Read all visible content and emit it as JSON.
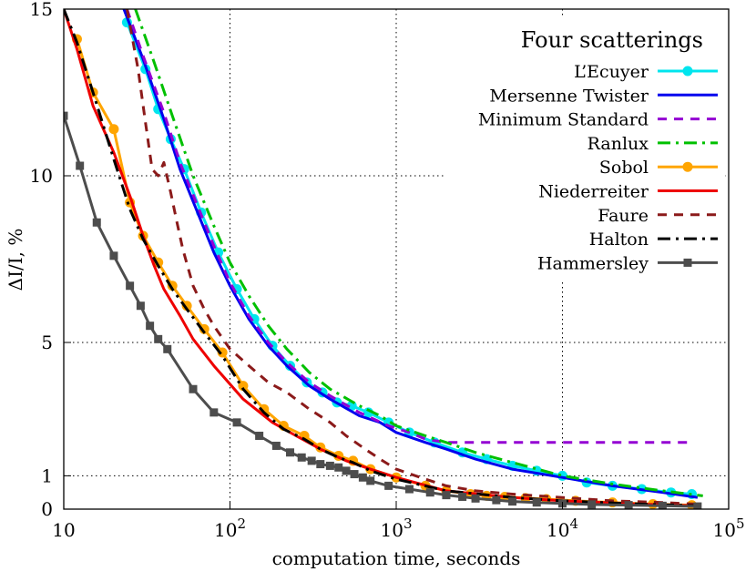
{
  "chart_data": {
    "type": "line",
    "title": "",
    "xlabel": "computation time, seconds",
    "ylabel": "ΔI/I, %",
    "xscale": "log",
    "xlim": [
      10,
      100000
    ],
    "ylim": [
      0,
      15
    ],
    "x_ticks": [
      {
        "value": 10,
        "base": "10",
        "exp": ""
      },
      {
        "value": 100,
        "base": "10",
        "exp": "2"
      },
      {
        "value": 1000,
        "base": "10",
        "exp": "3"
      },
      {
        "value": 10000,
        "base": "10",
        "exp": "4"
      },
      {
        "value": 100000,
        "base": "10",
        "exp": "5"
      }
    ],
    "y_ticks": [
      0,
      1,
      5,
      10,
      15
    ],
    "grid": true,
    "legend": {
      "title": "Four scatterings",
      "position": "top-right"
    },
    "series": [
      {
        "name": "L’Ecuyer",
        "color": "#00e5ee",
        "style": "solid",
        "marker": "circle",
        "x": [
          24,
          31,
          37,
          44,
          53,
          67,
          85,
          110,
          140,
          180,
          230,
          290,
          360,
          440,
          540,
          680,
          900,
          1200,
          1700,
          2500,
          3500,
          5000,
          7000,
          10000,
          14000,
          20000,
          30000,
          45000,
          60000
        ],
        "y": [
          14.6,
          13.2,
          12.0,
          11.1,
          10.2,
          8.9,
          7.7,
          6.6,
          5.7,
          4.9,
          4.3,
          3.8,
          3.5,
          3.2,
          3.1,
          2.9,
          2.6,
          2.3,
          2.0,
          1.7,
          1.5,
          1.3,
          1.15,
          1.0,
          0.8,
          0.7,
          0.6,
          0.5,
          0.45
        ]
      },
      {
        "name": "Mersenne Twister",
        "color": "#0000ee",
        "style": "solid",
        "marker": "none",
        "x": [
          23,
          30,
          40,
          50,
          65,
          80,
          100,
          130,
          170,
          220,
          300,
          400,
          600,
          800,
          1000,
          1500,
          2000,
          3000,
          5000,
          10000,
          20000,
          40000,
          65000
        ],
        "y": [
          15,
          13.5,
          11.7,
          10.2,
          8.8,
          7.7,
          6.7,
          5.7,
          4.9,
          4.3,
          3.7,
          3.3,
          2.8,
          2.6,
          2.3,
          2.0,
          1.8,
          1.5,
          1.2,
          0.95,
          0.7,
          0.5,
          0.35
        ]
      },
      {
        "name": "Minimum Standard",
        "color": "#9400d3",
        "style": "dash",
        "marker": "none",
        "x": [
          24,
          30,
          40,
          50,
          65,
          80,
          100,
          130,
          170,
          220,
          300,
          400,
          600,
          900,
          1200,
          1500,
          2000,
          5000,
          10000,
          30000,
          60000
        ],
        "y": [
          15,
          13.6,
          11.9,
          10.4,
          9.0,
          7.9,
          6.8,
          5.8,
          5.0,
          4.4,
          3.8,
          3.4,
          2.9,
          2.5,
          2.3,
          2.1,
          2.0,
          2.0,
          2.0,
          2.0,
          2.0
        ]
      },
      {
        "name": "Ranlux",
        "color": "#00c000",
        "style": "dashdot",
        "marker": "none",
        "x": [
          27,
          35,
          45,
          60,
          80,
          100,
          130,
          170,
          220,
          300,
          400,
          600,
          800,
          1000,
          1500,
          2000,
          3000,
          5000,
          10000,
          20000,
          40000,
          70000
        ],
        "y": [
          15,
          13.4,
          11.8,
          10.0,
          8.5,
          7.4,
          6.4,
          5.5,
          4.8,
          4.1,
          3.6,
          3.1,
          2.8,
          2.5,
          2.2,
          2.0,
          1.7,
          1.4,
          1.0,
          0.75,
          0.55,
          0.4
        ]
      },
      {
        "name": "Sobol",
        "color": "#ffa500",
        "style": "solid",
        "marker": "circle",
        "x": [
          12,
          15,
          20,
          25,
          30,
          37,
          45,
          55,
          70,
          90,
          120,
          160,
          210,
          280,
          350,
          450,
          550,
          700,
          1000,
          1500,
          2000,
          2800,
          3500,
          4500,
          6000,
          8000,
          12000,
          20000,
          35000,
          60000
        ],
        "y": [
          14.1,
          12.5,
          11.4,
          9.2,
          8.2,
          7.4,
          6.7,
          6.1,
          5.4,
          4.7,
          3.7,
          3.0,
          2.5,
          2.2,
          1.85,
          1.6,
          1.45,
          1.2,
          0.95,
          0.7,
          0.55,
          0.45,
          0.4,
          0.37,
          0.33,
          0.3,
          0.25,
          0.2,
          0.15,
          0.12
        ]
      },
      {
        "name": "Niederreiter",
        "color": "#ee0000",
        "style": "solid",
        "marker": "none",
        "x": [
          10,
          12,
          15,
          20,
          25,
          30,
          35,
          40,
          50,
          60,
          80,
          120,
          180,
          250,
          350,
          500,
          700,
          1000,
          2000,
          5000,
          10000,
          30000,
          65000
        ],
        "y": [
          15,
          13.8,
          12.1,
          10.7,
          9.4,
          8.2,
          7.3,
          6.6,
          5.8,
          5.1,
          4.3,
          3.3,
          2.6,
          2.2,
          1.8,
          1.45,
          1.2,
          0.95,
          0.55,
          0.35,
          0.25,
          0.15,
          0.1
        ]
      },
      {
        "name": "Faure",
        "color": "#8b1a1a",
        "style": "dash",
        "marker": "none",
        "x": [
          24,
          28,
          31,
          34,
          37,
          40,
          44,
          48,
          52,
          60,
          70,
          80,
          100,
          130,
          170,
          220,
          300,
          400,
          500,
          650,
          800,
          1000,
          1500,
          2000,
          3000,
          5000,
          10000,
          20000,
          40000,
          65000
        ],
        "y": [
          15,
          13.2,
          11.6,
          10.2,
          10.0,
          10.4,
          9.5,
          8.6,
          7.8,
          6.7,
          6.0,
          5.5,
          4.8,
          4.3,
          3.8,
          3.5,
          3.0,
          2.6,
          2.2,
          1.8,
          1.5,
          1.2,
          0.9,
          0.7,
          0.55,
          0.45,
          0.35,
          0.25,
          0.2,
          0.15
        ]
      },
      {
        "name": "Halton",
        "color": "#000000",
        "style": "dashdot",
        "marker": "none",
        "x": [
          10,
          12,
          15,
          20,
          25,
          30,
          37,
          45,
          55,
          70,
          90,
          120,
          160,
          210,
          280,
          350,
          450,
          550,
          700,
          1000,
          2000,
          5000,
          10000,
          30000,
          65000
        ],
        "y": [
          15,
          14.0,
          12.5,
          10.5,
          9.0,
          8.1,
          7.3,
          6.6,
          6.0,
          5.3,
          4.6,
          3.6,
          2.9,
          2.4,
          2.1,
          1.8,
          1.55,
          1.4,
          1.15,
          0.9,
          0.55,
          0.35,
          0.25,
          0.15,
          0.1
        ]
      },
      {
        "name": "Hammersley",
        "color": "#4d4d4d",
        "style": "solid",
        "marker": "square",
        "x": [
          10,
          12.5,
          15.8,
          20,
          25,
          29,
          33,
          37,
          42,
          60,
          80,
          110,
          150,
          190,
          230,
          270,
          310,
          350,
          400,
          450,
          500,
          560,
          630,
          700,
          900,
          1200,
          1600,
          2000,
          2500,
          3000,
          4000,
          5000,
          7000,
          10000,
          15000,
          25000,
          40000,
          65000
        ],
        "y": [
          11.8,
          10.3,
          8.6,
          7.6,
          6.7,
          6.1,
          5.5,
          5.1,
          4.8,
          3.6,
          2.9,
          2.6,
          2.2,
          1.9,
          1.7,
          1.55,
          1.45,
          1.35,
          1.3,
          1.25,
          1.15,
          1.05,
          0.95,
          0.85,
          0.7,
          0.6,
          0.5,
          0.42,
          0.37,
          0.32,
          0.27,
          0.23,
          0.2,
          0.17,
          0.14,
          0.12,
          0.1,
          0.08
        ]
      }
    ]
  }
}
